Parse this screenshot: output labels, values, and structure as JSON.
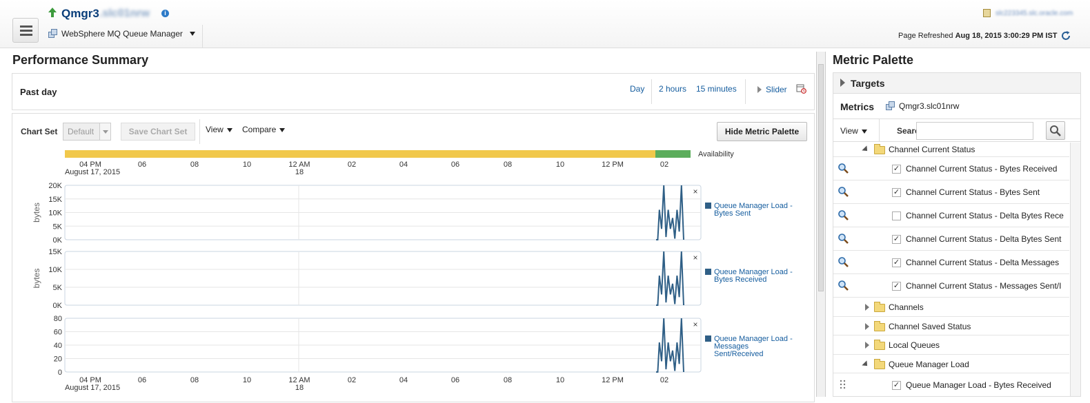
{
  "header": {
    "title": "Qmgr3",
    "host_blurred": ".slc01nrw",
    "target_type": "WebSphere MQ Queue Manager",
    "top_host_blurred": "slc2233​45.slc.oracle.com",
    "refresh_label": "Page Refreshed",
    "refresh_time": "Aug 18, 2015 3:00:29 PM IST"
  },
  "performance": {
    "title": "Performance Summary",
    "range_label": "Past day",
    "range_links": [
      "Day",
      "2 hours",
      "15 minutes"
    ],
    "slider_label": "Slider",
    "chart_set_label": "Chart Set",
    "chart_set_value": "Default",
    "save_chart_set": "Save Chart Set",
    "view_label": "View",
    "compare_label": "Compare",
    "hide_palette": "Hide Metric Palette",
    "availability_label": "Availability"
  },
  "chart_data": [
    {
      "type": "line",
      "ylabel": "bytes",
      "yticks": [
        "20K",
        "15K",
        "10K",
        "5K",
        "0K"
      ],
      "ylim": [
        0,
        20000
      ],
      "series": [
        {
          "name": "Queue Manager Load - Bytes Sent",
          "color": "#2f5f86"
        }
      ],
      "x_ticks": [
        "04 PM\nAugust 17, 2015",
        "06",
        "08",
        "10",
        "12 AM\n18",
        "02",
        "04",
        "06",
        "08",
        "10",
        "12 PM",
        "02"
      ]
    },
    {
      "type": "line",
      "ylabel": "bytes",
      "yticks": [
        "15K",
        "10K",
        "5K",
        "0K"
      ],
      "ylim": [
        0,
        15000
      ],
      "series": [
        {
          "name": "Queue Manager Load - Bytes Received",
          "color": "#2f5f86"
        }
      ]
    },
    {
      "type": "line",
      "ylabel": "",
      "yticks": [
        "80",
        "60",
        "40",
        "20",
        "0"
      ],
      "ylim": [
        0,
        80
      ],
      "series": [
        {
          "name": "Queue Manager Load - Messages Sent/Received",
          "color": "#2f5f86"
        }
      ],
      "x_ticks": [
        "04 PM\nAugust 17, 2015",
        "06",
        "08",
        "10",
        "12 AM\n18",
        "02",
        "04",
        "06",
        "08",
        "10",
        "12 PM",
        "02"
      ]
    }
  ],
  "palette": {
    "title": "Metric Palette",
    "targets_label": "Targets",
    "metrics_label": "Metrics",
    "metrics_target": "Qmgr3.slc01nrw",
    "view_label": "View",
    "search_label": "Search",
    "search_value": "",
    "tree": [
      {
        "label": "Channel Current Status",
        "kind": "folder",
        "expanded": true
      },
      {
        "label": "Channel Current Status - Bytes Received",
        "kind": "metric",
        "checked": true
      },
      {
        "label": "Channel Current Status - Bytes Sent",
        "kind": "metric",
        "checked": true
      },
      {
        "label": "Channel Current Status - Delta Bytes Rece",
        "kind": "metric",
        "checked": false
      },
      {
        "label": "Channel Current Status - Delta Bytes Sent",
        "kind": "metric",
        "checked": true
      },
      {
        "label": "Channel Current Status - Delta Messages",
        "kind": "metric",
        "checked": true
      },
      {
        "label": "Channel Current Status - Messages Sent/I",
        "kind": "metric",
        "checked": true
      },
      {
        "label": "Channels",
        "kind": "folder",
        "expanded": false
      },
      {
        "label": "Channel Saved Status",
        "kind": "folder",
        "expanded": false
      },
      {
        "label": "Local Queues",
        "kind": "folder",
        "expanded": false
      },
      {
        "label": "Queue Manager Load",
        "kind": "folder",
        "expanded": true
      },
      {
        "label": "Queue Manager Load - Bytes Received",
        "kind": "metric",
        "checked": true
      }
    ]
  }
}
